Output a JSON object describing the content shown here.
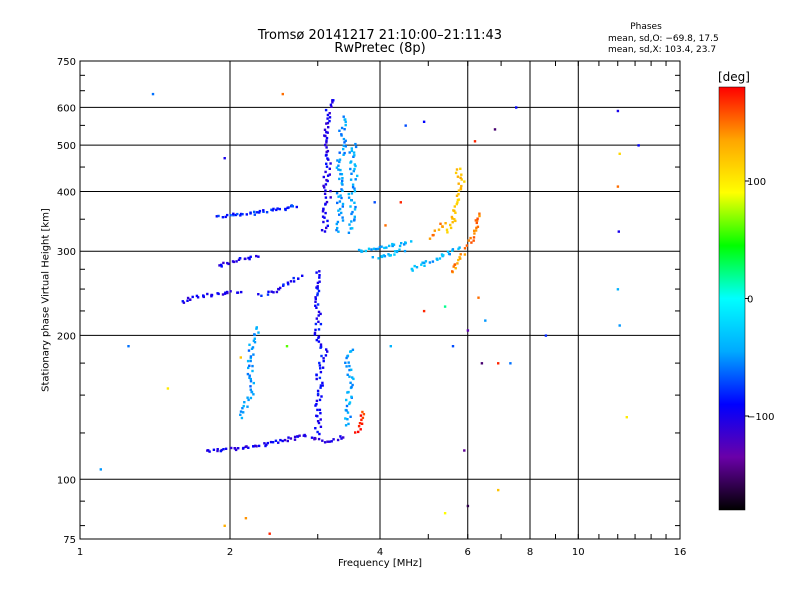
{
  "chart_data": {
    "type": "scatter",
    "title": "Tromsø 20141217 21:10:00–21:11:43",
    "subtitle": "RwPretec (8p)",
    "stats": {
      "heading": "Phases",
      "o_line": "mean, sd,O: −69.8, 17.5",
      "x_line": "mean, sd,X: 103.4, 23.7"
    },
    "xlabel": "Frequency [MHz]",
    "ylabel": "Stationary phase Virtual Height [km]",
    "x_scale": "log",
    "y_scale": "log",
    "xlim": [
      1,
      16
    ],
    "ylim": [
      75,
      750
    ],
    "x_ticks": [
      {
        "value": 1,
        "label": "1"
      },
      {
        "value": 2,
        "label": "2"
      },
      {
        "value": 4,
        "label": "4"
      },
      {
        "value": 6,
        "label": "6"
      },
      {
        "value": 8,
        "label": "8"
      },
      {
        "value": 10,
        "label": "10"
      },
      {
        "value": 16,
        "label": "16"
      }
    ],
    "y_ticks": [
      {
        "value": 75,
        "label": "75"
      },
      {
        "value": 100,
        "label": "100"
      },
      {
        "value": 200,
        "label": "200"
      },
      {
        "value": 300,
        "label": "300"
      },
      {
        "value": 400,
        "label": "400"
      },
      {
        "value": 500,
        "label": "500"
      },
      {
        "value": 600,
        "label": "600"
      },
      {
        "value": 750,
        "label": "750"
      }
    ],
    "grid": true,
    "colorbar": {
      "unit": "[deg]",
      "range": [
        -180,
        180
      ],
      "ticks": [
        {
          "value": 100,
          "label": "100"
        },
        {
          "value": 0,
          "label": "0"
        },
        {
          "value": -100,
          "label": "−100"
        }
      ],
      "colors": [
        "#000000",
        "#6a00a8",
        "#0000ff",
        "#00aaff",
        "#00ffff",
        "#00ff00",
        "#ffff00",
        "#ffa500",
        "#ff0000"
      ]
    },
    "traces": [
      {
        "phase": -100,
        "points": [
          [
            1.8,
            115
          ],
          [
            1.9,
            115
          ],
          [
            2.0,
            116
          ],
          [
            2.1,
            116
          ],
          [
            2.2,
            117
          ],
          [
            2.3,
            118
          ],
          [
            2.5,
            120
          ],
          [
            2.7,
            122
          ],
          [
            2.9,
            124
          ]
        ]
      },
      {
        "phase": -110,
        "points": [
          [
            2.9,
            122
          ],
          [
            3.0,
            121
          ],
          [
            3.1,
            120
          ],
          [
            3.2,
            121
          ],
          [
            3.3,
            122
          ],
          [
            3.4,
            123
          ]
        ]
      },
      {
        "phase": -90,
        "points": [
          [
            3.0,
            125
          ],
          [
            3.0,
            135
          ],
          [
            3.0,
            145
          ],
          [
            3.05,
            155
          ],
          [
            3.0,
            165
          ],
          [
            3.05,
            175
          ],
          [
            3.1,
            185
          ],
          [
            3.0,
            195
          ],
          [
            3.0,
            205
          ],
          [
            3.0,
            215
          ],
          [
            3.0,
            230
          ],
          [
            3.0,
            245
          ],
          [
            3.0,
            260
          ],
          [
            3.0,
            275
          ]
        ]
      },
      {
        "phase": -100,
        "points": [
          [
            3.1,
            330
          ],
          [
            3.1,
            360
          ],
          [
            3.15,
            390
          ],
          [
            3.1,
            420
          ],
          [
            3.15,
            450
          ],
          [
            3.1,
            480
          ],
          [
            3.15,
            510
          ],
          [
            3.1,
            540
          ],
          [
            3.15,
            570
          ],
          [
            3.15,
            600
          ],
          [
            3.2,
            630
          ]
        ]
      },
      {
        "phase": -50,
        "points": [
          [
            3.3,
            330
          ],
          [
            3.35,
            360
          ],
          [
            3.3,
            390
          ],
          [
            3.35,
            420
          ],
          [
            3.3,
            460
          ],
          [
            3.4,
            500
          ],
          [
            3.35,
            540
          ],
          [
            3.4,
            580
          ]
        ]
      },
      {
        "phase": -45,
        "points": [
          [
            3.5,
            330
          ],
          [
            3.55,
            360
          ],
          [
            3.5,
            390
          ],
          [
            3.55,
            430
          ],
          [
            3.5,
            470
          ],
          [
            3.55,
            510
          ]
        ]
      },
      {
        "phase": -45,
        "points": [
          [
            3.45,
            130
          ],
          [
            3.45,
            145
          ],
          [
            3.5,
            160
          ],
          [
            3.45,
            175
          ],
          [
            3.5,
            190
          ]
        ]
      },
      {
        "phase": -100,
        "points": [
          [
            1.6,
            235
          ],
          [
            1.7,
            240
          ],
          [
            1.8,
            243
          ],
          [
            1.9,
            245
          ],
          [
            2.0,
            246
          ],
          [
            2.1,
            247
          ]
        ]
      },
      {
        "phase": -100,
        "points": [
          [
            1.9,
            280
          ],
          [
            2.0,
            285
          ],
          [
            2.1,
            288
          ],
          [
            2.2,
            290
          ],
          [
            2.3,
            292
          ]
        ]
      },
      {
        "phase": -90,
        "points": [
          [
            2.3,
            243
          ],
          [
            2.4,
            246
          ],
          [
            2.5,
            250
          ],
          [
            2.6,
            256
          ],
          [
            2.7,
            262
          ],
          [
            2.8,
            268
          ]
        ]
      },
      {
        "phase": -80,
        "points": [
          [
            1.9,
            355
          ],
          [
            2.0,
            357
          ],
          [
            2.1,
            358
          ],
          [
            2.2,
            360
          ],
          [
            2.4,
            365
          ],
          [
            2.6,
            370
          ],
          [
            2.75,
            375
          ]
        ]
      },
      {
        "phase": -50,
        "points": [
          [
            2.1,
            135
          ],
          [
            2.2,
            150
          ],
          [
            2.2,
            170
          ],
          [
            2.2,
            190
          ],
          [
            2.3,
            210
          ]
        ]
      },
      {
        "phase": -40,
        "points": [
          [
            3.6,
            300
          ],
          [
            3.8,
            302
          ],
          [
            4.0,
            305
          ],
          [
            4.2,
            308
          ],
          [
            4.4,
            310
          ],
          [
            4.6,
            315
          ]
        ]
      },
      {
        "phase": -40,
        "points": [
          [
            4.6,
            275
          ],
          [
            4.8,
            280
          ],
          [
            5.0,
            285
          ],
          [
            5.2,
            290
          ],
          [
            5.4,
            295
          ],
          [
            5.6,
            300
          ],
          [
            5.8,
            305
          ]
        ]
      },
      {
        "phase": -40,
        "points": [
          [
            3.9,
            290
          ],
          [
            4.1,
            294
          ],
          [
            4.3,
            298
          ],
          [
            4.5,
            302
          ]
        ]
      },
      {
        "phase": 120,
        "points": [
          [
            5.5,
            330
          ],
          [
            5.6,
            350
          ],
          [
            5.7,
            370
          ],
          [
            5.75,
            400
          ],
          [
            5.8,
            430
          ],
          [
            5.7,
            450
          ]
        ]
      },
      {
        "phase": 140,
        "points": [
          [
            5.6,
            270
          ],
          [
            5.7,
            280
          ],
          [
            5.8,
            290
          ],
          [
            5.9,
            300
          ]
        ]
      },
      {
        "phase": 140,
        "points": [
          [
            5.1,
            320
          ],
          [
            5.2,
            330
          ],
          [
            5.3,
            338
          ],
          [
            5.4,
            345
          ]
        ]
      },
      {
        "phase": 150,
        "points": [
          [
            6.0,
            305
          ],
          [
            6.1,
            320
          ],
          [
            6.2,
            335
          ],
          [
            6.3,
            350
          ],
          [
            6.4,
            365
          ]
        ]
      },
      {
        "phase": 170,
        "points": [
          [
            3.6,
            125
          ],
          [
            3.65,
            133
          ],
          [
            3.7,
            140
          ]
        ]
      }
    ],
    "scatter": [
      {
        "x": 1.1,
        "y": 105,
        "phase": -50
      },
      {
        "x": 1.4,
        "y": 640,
        "phase": -60
      },
      {
        "x": 1.95,
        "y": 470,
        "phase": -100
      },
      {
        "x": 2.55,
        "y": 640,
        "phase": 150
      },
      {
        "x": 4.9,
        "y": 560,
        "phase": -90
      },
      {
        "x": 5.9,
        "y": 420,
        "phase": 110
      },
      {
        "x": 6.2,
        "y": 510,
        "phase": 170
      },
      {
        "x": 6.3,
        "y": 240,
        "phase": 150
      },
      {
        "x": 6.0,
        "y": 205,
        "phase": -130
      },
      {
        "x": 5.4,
        "y": 230,
        "phase": 20
      },
      {
        "x": 4.5,
        "y": 550,
        "phase": -70
      },
      {
        "x": 4.4,
        "y": 380,
        "phase": 170
      },
      {
        "x": 6.8,
        "y": 540,
        "phase": -150
      },
      {
        "x": 7.5,
        "y": 600,
        "phase": -90
      },
      {
        "x": 8.6,
        "y": 200,
        "phase": -80
      },
      {
        "x": 12.0,
        "y": 590,
        "phase": -100
      },
      {
        "x": 12.1,
        "y": 480,
        "phase": 110
      },
      {
        "x": 12.0,
        "y": 410,
        "phase": 150
      },
      {
        "x": 12.05,
        "y": 330,
        "phase": -100
      },
      {
        "x": 12.0,
        "y": 250,
        "phase": -40
      },
      {
        "x": 12.1,
        "y": 210,
        "phase": -50
      },
      {
        "x": 13.2,
        "y": 500,
        "phase": -90
      },
      {
        "x": 12.5,
        "y": 135,
        "phase": 100
      },
      {
        "x": 6.9,
        "y": 95,
        "phase": 120
      },
      {
        "x": 5.4,
        "y": 85,
        "phase": 90
      },
      {
        "x": 6.0,
        "y": 88,
        "phase": -160
      },
      {
        "x": 5.9,
        "y": 115,
        "phase": -140
      },
      {
        "x": 2.4,
        "y": 77,
        "phase": 170
      },
      {
        "x": 1.95,
        "y": 80,
        "phase": 130
      },
      {
        "x": 2.15,
        "y": 83,
        "phase": 140
      },
      {
        "x": 6.4,
        "y": 175,
        "phase": -150
      },
      {
        "x": 6.9,
        "y": 175,
        "phase": 170
      },
      {
        "x": 7.3,
        "y": 175,
        "phase": -60
      },
      {
        "x": 5.6,
        "y": 190,
        "phase": -70
      },
      {
        "x": 4.2,
        "y": 190,
        "phase": -40
      },
      {
        "x": 2.6,
        "y": 190,
        "phase": 60
      },
      {
        "x": 1.25,
        "y": 190,
        "phase": -60
      },
      {
        "x": 1.5,
        "y": 155,
        "phase": 100
      },
      {
        "x": 2.1,
        "y": 180,
        "phase": 120
      },
      {
        "x": 4.1,
        "y": 340,
        "phase": 150
      },
      {
        "x": 3.9,
        "y": 380,
        "phase": -70
      },
      {
        "x": 4.9,
        "y": 225,
        "phase": 170
      },
      {
        "x": 6.5,
        "y": 215,
        "phase": -50
      }
    ]
  }
}
